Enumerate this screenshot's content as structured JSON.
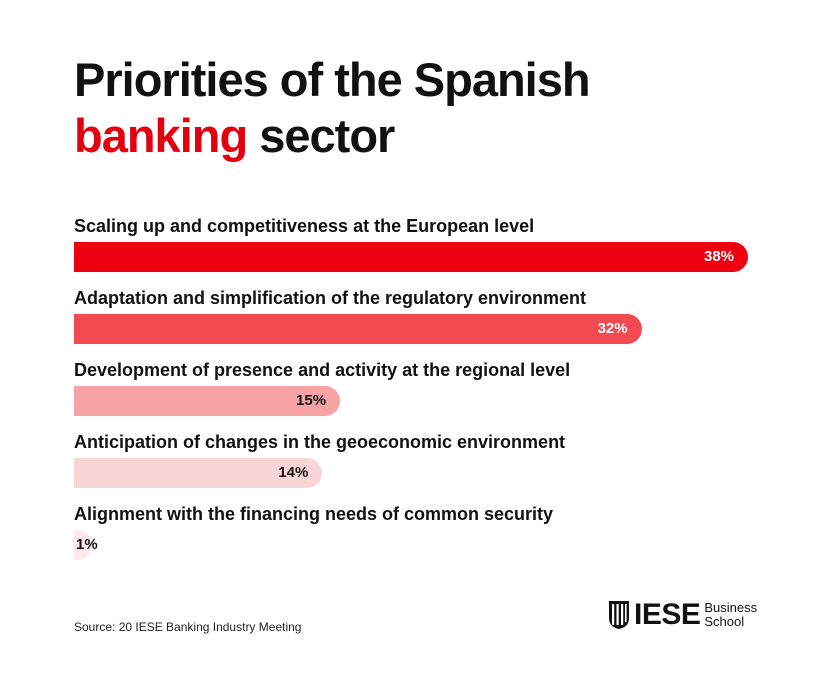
{
  "title": {
    "line1": "Priorities of the Spanish",
    "accent": "banking",
    "rest": "sector"
  },
  "source": "Source: 20 IESE Banking Industry Meeting",
  "logo": {
    "word": "IESE",
    "sub1": "Business",
    "sub2": "School"
  },
  "colors": {
    "accent": "#e3000f",
    "text": "#111111"
  },
  "chart_data": {
    "type": "bar",
    "orientation": "horizontal",
    "categories": [
      "Scaling up and competitiveness at the European level",
      "Adaptation and simplification of the regulatory environment",
      "Development of presence and activity at the regional level",
      "Anticipation of changes in the geoeconomic environment",
      "Alignment with the financing needs of common security"
    ],
    "values": [
      38,
      32,
      15,
      14,
      1
    ],
    "value_labels": [
      "38%",
      "32%",
      "15%",
      "14%",
      "1%"
    ],
    "bar_colors": [
      "#ee0010",
      "#f24a50",
      "#f7a3a6",
      "#fbd6d7",
      "#fde9ea"
    ],
    "unit": "%",
    "xlim": [
      0,
      38
    ],
    "grid": false
  }
}
